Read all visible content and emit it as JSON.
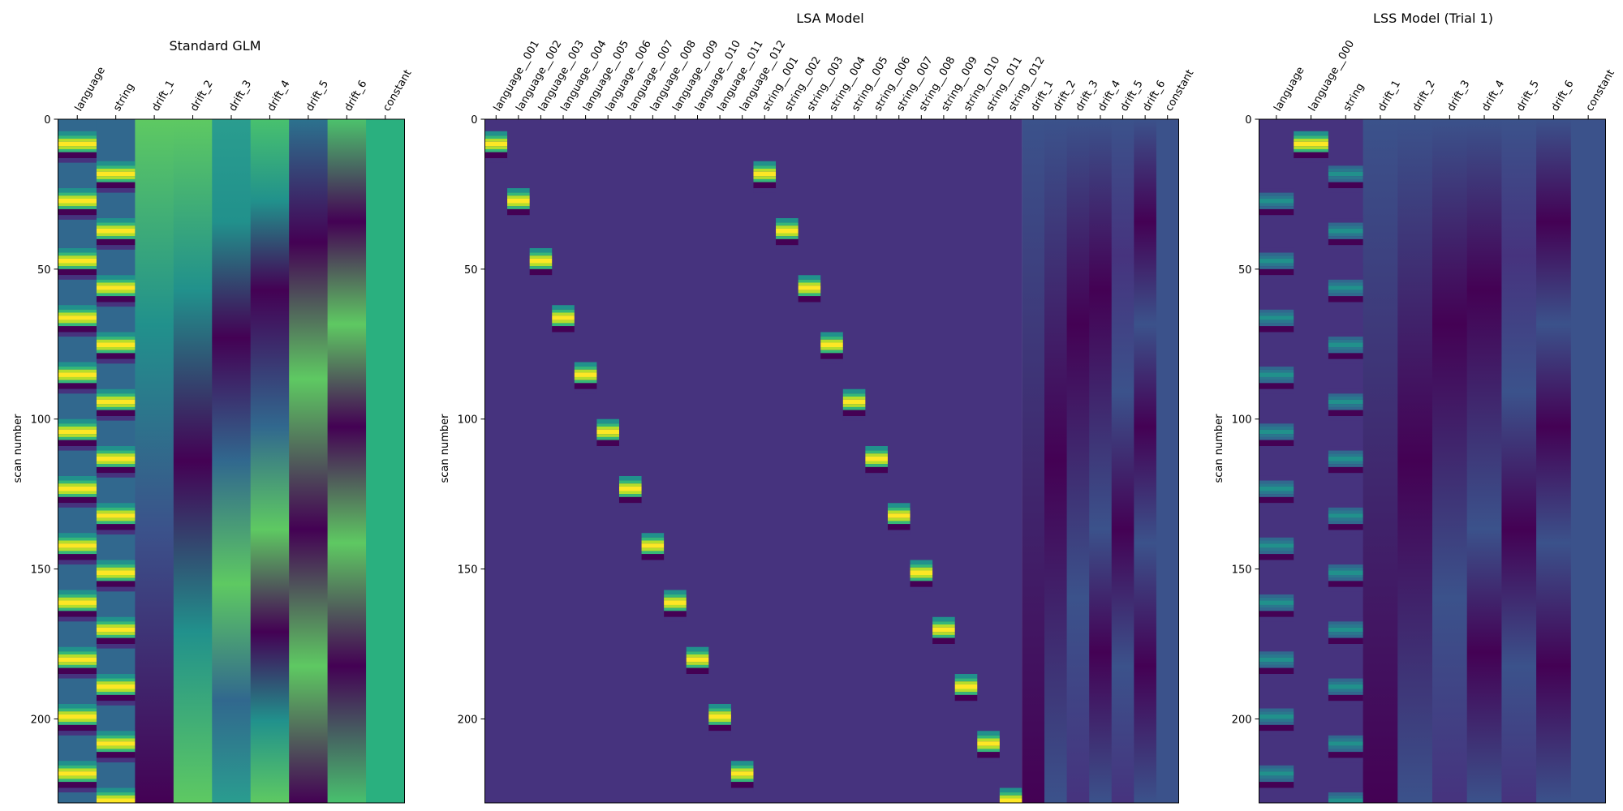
{
  "chart_data": [
    {
      "type": "heatmap",
      "title": "Standard GLM",
      "xlabel": "",
      "ylabel": "scan number",
      "columns": [
        "language",
        "string",
        "drift_1",
        "drift_2",
        "drift_3",
        "drift_4",
        "drift_5",
        "drift_6",
        "constant"
      ],
      "y_ticks": [
        0,
        50,
        100,
        150,
        200
      ],
      "ylim": [
        0,
        228
      ],
      "colormap": "viridis",
      "events": {
        "language": [
          7,
          26,
          46,
          65,
          84,
          103,
          122,
          141,
          160,
          179,
          198,
          217
        ],
        "string": [
          17,
          36,
          55,
          74,
          93,
          112,
          131,
          150,
          169,
          188,
          207,
          226
        ]
      },
      "column_colors_at_top": [
        "#2e6d8e",
        "#2e6d8e",
        "#5ec962",
        "#5ec962",
        "#2a9d8f",
        "#48c16e",
        "#2c728e",
        "#4cc26c",
        "#2ab07f"
      ]
    },
    {
      "type": "heatmap",
      "title": "LSA Model",
      "xlabel": "",
      "ylabel": "scan number",
      "columns": [
        "language__001",
        "language__002",
        "language__003",
        "language__004",
        "language__005",
        "language__006",
        "language__007",
        "language__008",
        "language__009",
        "language__010",
        "language__011",
        "language__012",
        "string__001",
        "string__002",
        "string__003",
        "string__004",
        "string__005",
        "string__006",
        "string__007",
        "string__008",
        "string__009",
        "string__010",
        "string__011",
        "string__012",
        "drift_1",
        "drift_2",
        "drift_3",
        "drift_4",
        "drift_5",
        "drift_6",
        "constant"
      ],
      "y_ticks": [
        0,
        50,
        100,
        150,
        200
      ],
      "ylim": [
        0,
        228
      ],
      "colormap": "viridis",
      "background_color": "#46337e"
    },
    {
      "type": "heatmap",
      "title": "LSS Model (Trial 1)",
      "xlabel": "",
      "ylabel": "scan number",
      "columns": [
        "language",
        "language__000",
        "string",
        "drift_1",
        "drift_2",
        "drift_3",
        "drift_4",
        "drift_5",
        "drift_6",
        "constant"
      ],
      "y_ticks": [
        0,
        50,
        100,
        150,
        200
      ],
      "ylim": [
        0,
        228
      ],
      "colormap": "viridis",
      "background_color": "#3b528b"
    }
  ]
}
